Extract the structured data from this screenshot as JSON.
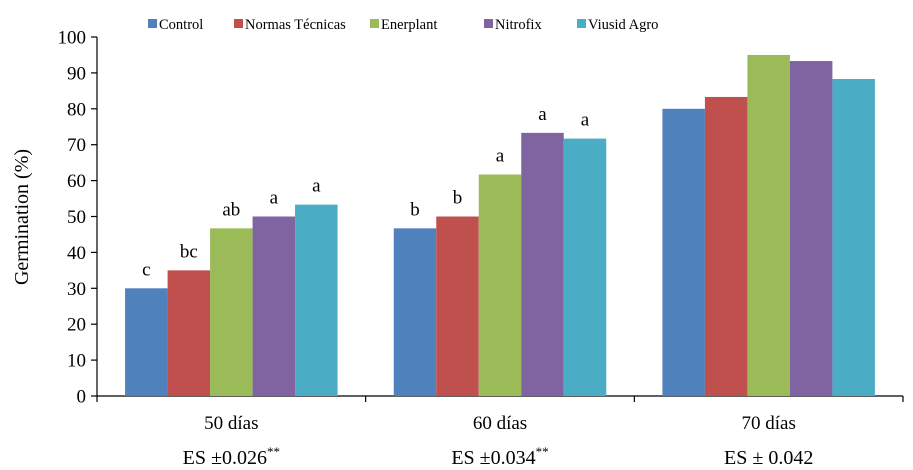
{
  "chart_data": {
    "type": "bar",
    "ylabel": "Germination (%)",
    "xlabel": "",
    "ylim": [
      0,
      100
    ],
    "yticks": [
      0,
      10,
      20,
      30,
      40,
      50,
      60,
      70,
      80,
      90,
      100
    ],
    "categories": [
      "50 días",
      "60 días",
      "70 días"
    ],
    "se_labels": [
      {
        "text": "ES ±0.026",
        "sup": "**"
      },
      {
        "text": "ES ±0.034",
        "sup": "**"
      },
      {
        "text": "ES ± 0.042",
        "sup": ""
      }
    ],
    "legend_position": "top",
    "grid": false,
    "series": [
      {
        "name": "Control",
        "color": "#4F81BD",
        "values": [
          30,
          46.7,
          80
        ],
        "letters": [
          "c",
          "b",
          ""
        ]
      },
      {
        "name": "Normas Técnicas",
        "color": "#C0504D",
        "values": [
          35,
          50,
          83.3
        ],
        "letters": [
          "bc",
          "b",
          ""
        ]
      },
      {
        "name": "Enerplant",
        "color": "#9BBB59",
        "values": [
          46.7,
          61.7,
          95
        ],
        "letters": [
          "ab",
          "a",
          ""
        ]
      },
      {
        "name": "Nitrofix",
        "color": "#8064A2",
        "values": [
          50,
          73.3,
          93.3
        ],
        "letters": [
          "a",
          "a",
          ""
        ]
      },
      {
        "name": "Viusid Agro",
        "color": "#4BACC6",
        "values": [
          53.3,
          71.7,
          88.3
        ],
        "letters": [
          "a",
          "a",
          ""
        ]
      }
    ]
  }
}
